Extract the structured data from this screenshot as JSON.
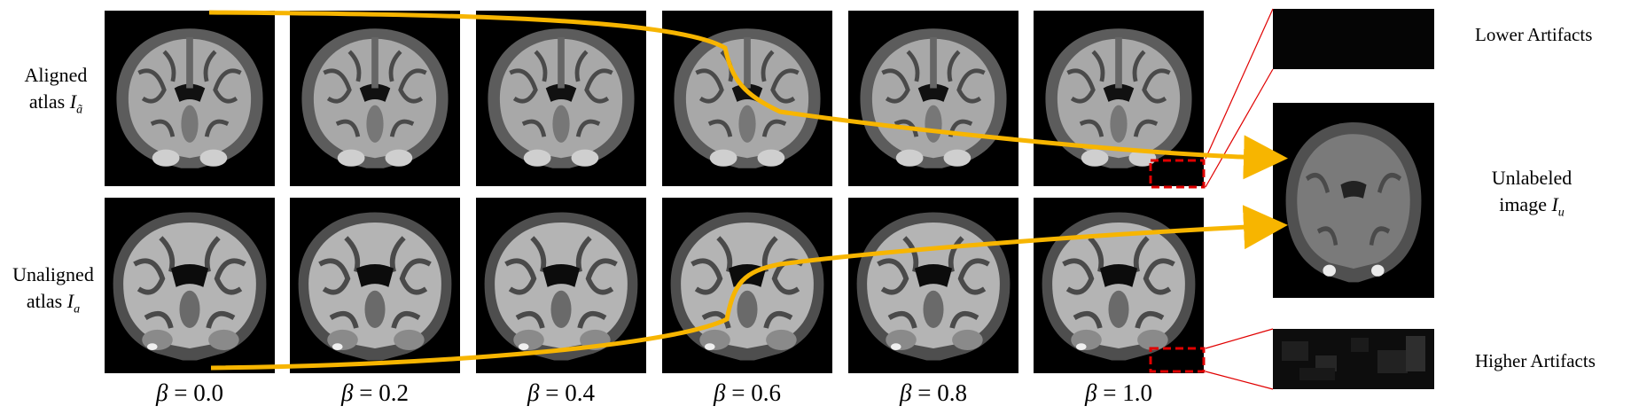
{
  "row_labels": {
    "aligned": {
      "line1": "Aligned",
      "line2_text": "atlas",
      "symbol": "I",
      "subscript": "ã"
    },
    "unaligned": {
      "line1": "Unaligned",
      "line2_text": "atlas",
      "symbol": "I",
      "subscript": "a"
    }
  },
  "beta_labels": [
    {
      "symbol": "β",
      "text": " = 0.0"
    },
    {
      "symbol": "β",
      "text": " = 0.2"
    },
    {
      "symbol": "β",
      "text": " = 0.4"
    },
    {
      "symbol": "β",
      "text": " = 0.6"
    },
    {
      "symbol": "β",
      "text": " = 0.8"
    },
    {
      "symbol": "β",
      "text": " = 1.0"
    }
  ],
  "side_labels": {
    "lower": "Lower Artifacts",
    "higher": "Higher Artifacts",
    "unlabeled_line1": "Unlabeled",
    "unlabeled_line2_text": "image",
    "unlabeled_symbol": "I",
    "unlabeled_subscript": "u"
  },
  "colors": {
    "arrow": "#f7b500",
    "zoom_box": "#e00000",
    "zoom_lines": "#e00000",
    "tile_background": "#000000"
  }
}
